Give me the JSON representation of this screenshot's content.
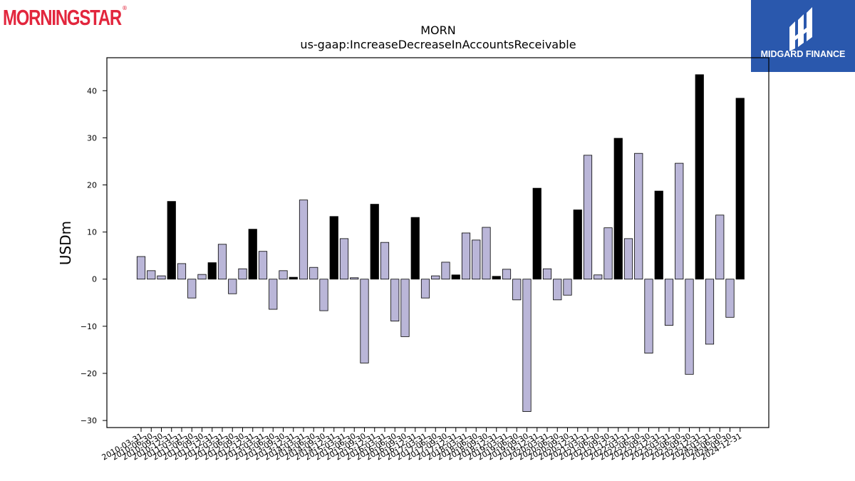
{
  "branding": {
    "logo_text": "MORNINGSTAR",
    "partner_logo_text": "MIDGARD FINANCE",
    "logo_color": "#e2263d",
    "partner_bg": "#2a58ad"
  },
  "chart_data": {
    "type": "bar",
    "title": "MORN",
    "subtitle": "us-gaap:IncreaseDecreaseInAccountsReceivable",
    "xlabel": "",
    "ylabel": "USDm",
    "ylim": [
      -31.5,
      47
    ],
    "yticks": [
      -30,
      -20,
      -10,
      0,
      10,
      20,
      30,
      40
    ],
    "grid": false,
    "colors": {
      "quarter": "#bab6d8",
      "year_end": "#000000",
      "edge": "#000000"
    },
    "categories": [
      "2010-03-31",
      "2010-06-30",
      "2010-09-30",
      "2010-12-31",
      "2011-03-31",
      "2011-06-30",
      "2011-09-30",
      "2011-12-31",
      "2012-03-31",
      "2012-06-30",
      "2012-09-30",
      "2012-12-31",
      "2013-03-31",
      "2013-06-30",
      "2013-09-30",
      "2013-12-31",
      "2014-03-31",
      "2014-06-30",
      "2014-09-30",
      "2014-12-31",
      "2015-03-31",
      "2015-06-30",
      "2015-09-30",
      "2015-12-31",
      "2016-03-31",
      "2016-06-30",
      "2016-09-30",
      "2016-12-31",
      "2017-03-31",
      "2017-06-30",
      "2017-09-30",
      "2017-12-31",
      "2018-03-31",
      "2018-06-30",
      "2018-09-30",
      "2018-12-31",
      "2019-03-31",
      "2019-06-30",
      "2019-09-30",
      "2019-12-31",
      "2020-03-31",
      "2020-06-30",
      "2020-09-30",
      "2020-12-31",
      "2021-03-31",
      "2021-06-30",
      "2021-09-30",
      "2021-12-31",
      "2022-03-31",
      "2022-06-30",
      "2022-09-30",
      "2022-12-31",
      "2023-03-31",
      "2023-06-30",
      "2023-09-30",
      "2023-12-31",
      "2024-03-31",
      "2024-06-30",
      "2024-09-30",
      "2024-12-31"
    ],
    "values": [
      4.8,
      1.8,
      0.7,
      16.5,
      3.3,
      -4.0,
      1.0,
      3.5,
      7.4,
      -3.1,
      2.2,
      10.6,
      5.9,
      -6.4,
      1.8,
      0.4,
      16.8,
      2.5,
      -6.7,
      13.3,
      8.6,
      0.3,
      -17.8,
      15.9,
      7.8,
      -8.9,
      -12.2,
      13.1,
      -4.0,
      0.7,
      3.6,
      0.9,
      9.8,
      8.3,
      11.0,
      0.6,
      2.1,
      -4.4,
      -28.1,
      19.3,
      2.2,
      -4.4,
      -3.4,
      14.7,
      26.3,
      0.9,
      10.9,
      29.9,
      8.6,
      26.7,
      -15.7,
      18.7,
      -9.8,
      24.6,
      -20.2,
      43.4,
      -13.8,
      13.6,
      -8.1,
      38.4
    ],
    "year_end": [
      false,
      false,
      false,
      true,
      false,
      false,
      false,
      true,
      false,
      false,
      false,
      true,
      false,
      false,
      false,
      true,
      false,
      false,
      false,
      true,
      false,
      false,
      false,
      true,
      false,
      false,
      false,
      true,
      false,
      false,
      false,
      true,
      false,
      false,
      false,
      true,
      false,
      false,
      false,
      true,
      false,
      false,
      false,
      true,
      false,
      false,
      false,
      true,
      false,
      false,
      false,
      true,
      false,
      false,
      false,
      true,
      false,
      false,
      false,
      true
    ]
  }
}
